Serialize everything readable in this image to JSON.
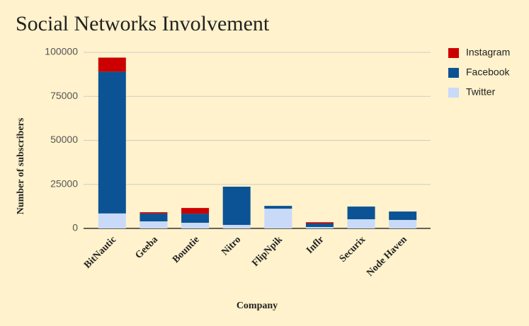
{
  "chart_data": {
    "type": "stacked_bar",
    "title": "Social Networks Involvement",
    "x_label": "Company",
    "y_label": "Number of subscribers",
    "categories": [
      "BitNautic",
      "Geeba",
      "Bountie",
      "Nitro",
      "FlipNpik",
      "Inflr",
      "Securix",
      "Node Haven"
    ],
    "series": [
      {
        "name": "Instagram",
        "color": "#cc0000",
        "values": [
          8000,
          700,
          3200,
          0,
          0,
          700,
          0,
          0
        ]
      },
      {
        "name": "Facebook",
        "color": "#0b5394",
        "values": [
          80500,
          4500,
          5200,
          21700,
          1600,
          2000,
          7200,
          4800
        ]
      },
      {
        "name": "Twitter",
        "color": "#c9daf8",
        "values": [
          8500,
          4000,
          3200,
          2000,
          11200,
          800,
          5200,
          4800
        ]
      }
    ],
    "ylim": [
      0,
      100000
    ],
    "yticks": [
      0,
      25000,
      50000,
      75000,
      100000
    ],
    "grid": true,
    "legend": "right"
  }
}
